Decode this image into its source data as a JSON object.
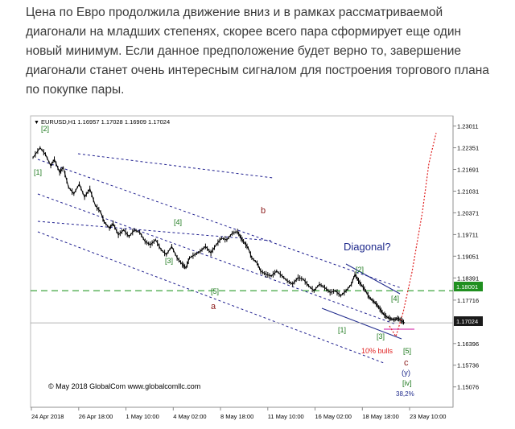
{
  "article": {
    "paragraph": "Цена по Евро продолжила движение вниз и в рамках рассматриваемой диагонали на младших степенях, скорее всего пара сформирует еще один новый минимум. Если данное предположение будет верно то, завершение диагонали станет очень интересным сигналом для построения торгового плана по покупке пары."
  },
  "chart_header": {
    "marker": "▼",
    "text": "EURUSD,H1  1.16957 1.17028 1.16909 1.17024"
  },
  "copyright": "© May 2018 GlobalCom www.globalcomllc.com",
  "colors": {
    "candles": "#000000",
    "channel": "#1f1f8f",
    "wave_labels": "#1e7a1e",
    "abc_labels": "#8b1a1a",
    "diagonal_text": "#1f2a8c",
    "forecast": "#e02020",
    "level_line": "#2a9a2a",
    "level_badge": "#1f8f1f",
    "current_badge": "#1a1a1a",
    "pink_line": "#e060c0"
  },
  "chart_data": {
    "type": "candlestick",
    "symbol": "EURUSD",
    "timeframe": "H1",
    "ohlc": {
      "open": 1.16957,
      "high": 1.17028,
      "low": 1.16909,
      "close": 1.17024
    },
    "ylim": [
      1.14456,
      1.2332
    ],
    "y_ticks": [
      "1.23011",
      "1.22351",
      "1.21691",
      "1.21031",
      "1.20371",
      "1.19711",
      "1.19051",
      "1.18391",
      "1.17716",
      "1.17024",
      "1.16396",
      "1.15736",
      "1.15076",
      "1.14416"
    ],
    "x_ticks": [
      "24 Apr 2018",
      "26 Apr 18:00",
      "1 May 10:00",
      "4 May 02:00",
      "8 May 18:00",
      "11 May 10:00",
      "16 May 02:00",
      "18 May 18:00",
      "23 May 10:00"
    ],
    "price_path": [
      [
        0,
        1.2205
      ],
      [
        8,
        1.2235
      ],
      [
        14,
        1.2215
      ],
      [
        20,
        1.218
      ],
      [
        24,
        1.22
      ],
      [
        30,
        1.216
      ],
      [
        34,
        1.2175
      ],
      [
        40,
        1.2115
      ],
      [
        46,
        1.2095
      ],
      [
        52,
        1.2125
      ],
      [
        58,
        1.2085
      ],
      [
        64,
        1.211
      ],
      [
        70,
        1.206
      ],
      [
        76,
        1.204
      ],
      [
        80,
        1.201
      ],
      [
        86,
        1.199
      ],
      [
        90,
        1.2005
      ],
      [
        96,
        1.197
      ],
      [
        102,
        1.1985
      ],
      [
        108,
        1.1965
      ],
      [
        114,
        1.1985
      ],
      [
        120,
        1.1978
      ],
      [
        126,
        1.195
      ],
      [
        132,
        1.194
      ],
      [
        138,
        1.1955
      ],
      [
        144,
        1.1925
      ],
      [
        150,
        1.191
      ],
      [
        156,
        1.1935
      ],
      [
        162,
        1.19
      ],
      [
        168,
        1.188
      ],
      [
        172,
        1.187
      ],
      [
        176,
        1.19
      ],
      [
        182,
        1.191
      ],
      [
        188,
        1.192
      ],
      [
        194,
        1.1935
      ],
      [
        200,
        1.1915
      ],
      [
        206,
        1.194
      ],
      [
        212,
        1.196
      ],
      [
        218,
        1.1955
      ],
      [
        224,
        1.1975
      ],
      [
        230,
        1.198
      ],
      [
        234,
        1.196
      ],
      [
        238,
        1.1945
      ],
      [
        242,
        1.193
      ],
      [
        246,
        1.19
      ],
      [
        252,
        1.1885
      ],
      [
        256,
        1.186
      ],
      [
        262,
        1.185
      ],
      [
        268,
        1.1845
      ],
      [
        274,
        1.186
      ],
      [
        280,
        1.1845
      ],
      [
        286,
        1.183
      ],
      [
        292,
        1.182
      ],
      [
        298,
        1.184
      ],
      [
        304,
        1.1835
      ],
      [
        310,
        1.1815
      ],
      [
        316,
        1.18
      ],
      [
        322,
        1.182
      ],
      [
        328,
        1.181
      ],
      [
        334,
        1.1795
      ],
      [
        340,
        1.18
      ],
      [
        346,
        1.1785
      ],
      [
        352,
        1.18
      ],
      [
        358,
        1.182
      ],
      [
        362,
        1.185
      ],
      [
        366,
        1.183
      ],
      [
        370,
        1.1815
      ],
      [
        374,
        1.18
      ],
      [
        378,
        1.178
      ],
      [
        382,
        1.177
      ],
      [
        386,
        1.176
      ],
      [
        390,
        1.1745
      ],
      [
        394,
        1.173
      ],
      [
        398,
        1.172
      ],
      [
        402,
        1.1715
      ],
      [
        406,
        1.1712
      ],
      [
        410,
        1.1716
      ],
      [
        414,
        1.171
      ],
      [
        418,
        1.1702
      ]
    ],
    "horizontal_levels": [
      {
        "value": 1.18001,
        "label": "1.18001",
        "style": "dashed-green"
      },
      {
        "value": 1.17024,
        "label": "1.17024",
        "style": "current"
      }
    ],
    "annotations": {
      "title": "Diagonal?",
      "bulls": "10% bulls",
      "fib": "38,2%",
      "wave_labels": [
        "[2]",
        "[1]",
        "[4]",
        "[3]",
        "[5]",
        "[2]",
        "[1]",
        "[3]",
        "[4]",
        "[5]",
        "[iv]"
      ],
      "abc_labels": [
        "b",
        "a",
        "c"
      ],
      "degree_label": "(y)"
    },
    "grid": false
  }
}
